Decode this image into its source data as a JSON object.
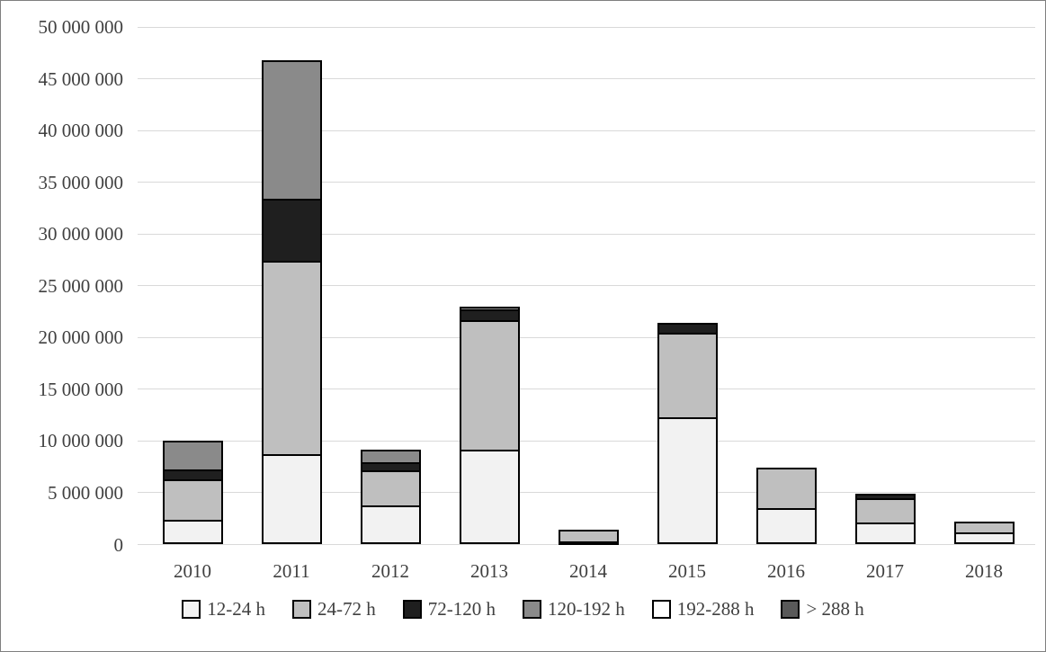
{
  "chart_data": {
    "type": "bar",
    "stacked": true,
    "title": "",
    "xlabel": "",
    "ylabel": "",
    "categories": [
      "2010",
      "2011",
      "2012",
      "2013",
      "2014",
      "2015",
      "2016",
      "2017",
      "2018"
    ],
    "series": [
      {
        "name": "12-24 h",
        "color": "#f2f2f2",
        "values": [
          2400000,
          8700000,
          3800000,
          9150000,
          300000,
          12300000,
          3500000,
          2100000,
          1150000
        ]
      },
      {
        "name": "24-72 h",
        "color": "#bfbfbf",
        "values": [
          3900000,
          18700000,
          3350000,
          12550000,
          1100000,
          8150000,
          3900000,
          2350000,
          1100000
        ]
      },
      {
        "name": "72-120 h",
        "color": "#1f1f1f",
        "values": [
          950000,
          6000000,
          800000,
          1000000,
          0,
          950000,
          0,
          450000,
          0
        ]
      },
      {
        "name": "120-192 h",
        "color": "#8a8a8a",
        "values": [
          2800000,
          13400000,
          1250000,
          300000,
          0,
          0,
          0,
          0,
          0
        ]
      },
      {
        "name": "192-288 h",
        "color": "#ffffff",
        "values": [
          0,
          0,
          0,
          0,
          0,
          0,
          0,
          0,
          0
        ]
      },
      {
        "name": "> 288 h",
        "color": "#595959",
        "values": [
          0,
          0,
          0,
          0,
          0,
          0,
          0,
          0,
          0
        ]
      }
    ],
    "ylim": [
      0,
      50000000
    ],
    "ytick_step": 5000000,
    "ytick_labels": [
      "0",
      "5 000 000",
      "10 000 000",
      "15 000 000",
      "20 000 000",
      "25 000 000",
      "30 000 000",
      "35 000 000",
      "40 000 000",
      "45 000 000",
      "50 000 000"
    ],
    "grid": true,
    "legend_position": "bottom"
  },
  "colors": {
    "figure_border": "#7f7f7f",
    "gridline": "#d9d9d9",
    "bar_border": "#000000",
    "text": "#404040",
    "background": "#ffffff"
  }
}
